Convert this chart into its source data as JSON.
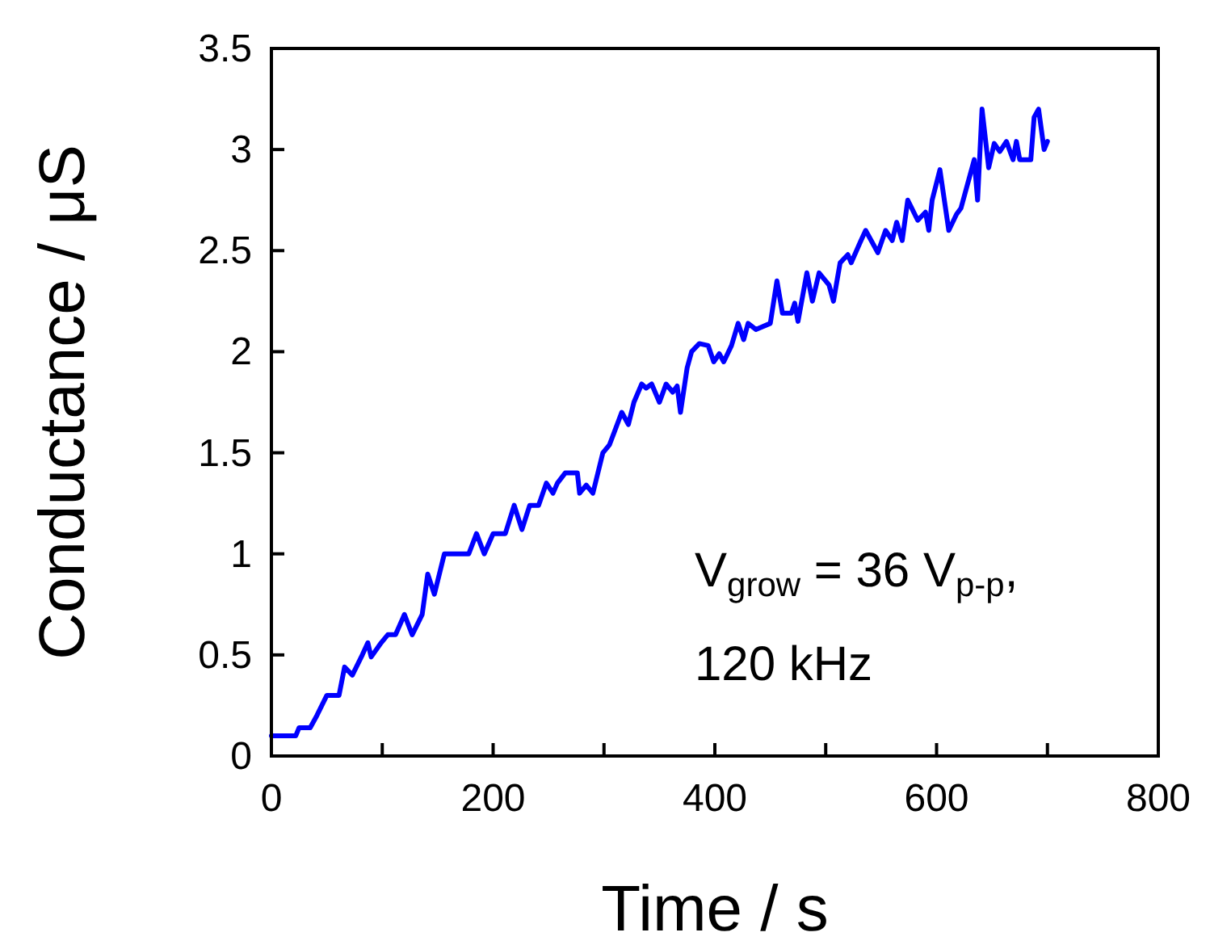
{
  "chart_data": {
    "type": "line",
    "xlabel": "Time / s",
    "ylabel": "Conductance / μS",
    "annotations": [
      "V$_{grow}$ = 36 V$_{p-p}$,",
      "120 kHz"
    ],
    "xlim": [
      0,
      800
    ],
    "xticks": [
      0,
      {
        "value": 100,
        "label": null
      },
      200,
      {
        "value": 300,
        "label": null
      },
      400,
      {
        "value": 500,
        "label": null
      },
      600,
      {
        "value": 700,
        "label": null
      },
      800
    ],
    "ylim": [
      0,
      3.5
    ],
    "yticks": [
      0,
      0.5,
      1,
      1.5,
      2,
      2.5,
      3,
      3.5
    ],
    "grid": false,
    "marker": "none",
    "line_style": "solid",
    "x": [
      0,
      22,
      25,
      35,
      41,
      50,
      61,
      66,
      73,
      82,
      87,
      90,
      99,
      105,
      112,
      120,
      127,
      136,
      141,
      147,
      156,
      178,
      185,
      192,
      200,
      211,
      219,
      226,
      233,
      241,
      248,
      254,
      258,
      265,
      276,
      278,
      284,
      290,
      299,
      305,
      316,
      322,
      327,
      334,
      338,
      343,
      350,
      356,
      362,
      366,
      369,
      375,
      379,
      386,
      394,
      399,
      404,
      408,
      415,
      421,
      426,
      430,
      437,
      450,
      456,
      461,
      469,
      472,
      475,
      483,
      488,
      494,
      503,
      507,
      513,
      520,
      523,
      531,
      536,
      547,
      554,
      560,
      564,
      569,
      574,
      583,
      590,
      593,
      596,
      603,
      611,
      618,
      622,
      634,
      637,
      641,
      647,
      652,
      657,
      663,
      669,
      672,
      675,
      685,
      688,
      692,
      697,
      700
    ],
    "series": [
      {
        "color": "#0000ff",
        "values": [
          0.1,
          0.1,
          0.14,
          0.14,
          0.2,
          0.3,
          0.3,
          0.44,
          0.4,
          0.5,
          0.56,
          0.49,
          0.56,
          0.6,
          0.6,
          0.7,
          0.6,
          0.7,
          0.9,
          0.8,
          1.0,
          1.0,
          1.1,
          1.0,
          1.1,
          1.1,
          1.24,
          1.12,
          1.24,
          1.24,
          1.35,
          1.3,
          1.35,
          1.4,
          1.4,
          1.3,
          1.34,
          1.3,
          1.5,
          1.54,
          1.7,
          1.64,
          1.75,
          1.84,
          1.82,
          1.84,
          1.75,
          1.84,
          1.8,
          1.83,
          1.7,
          1.92,
          2.0,
          2.04,
          2.03,
          1.95,
          1.99,
          1.95,
          2.03,
          2.14,
          2.06,
          2.14,
          2.11,
          2.14,
          2.35,
          2.19,
          2.19,
          2.24,
          2.15,
          2.39,
          2.25,
          2.39,
          2.33,
          2.25,
          2.44,
          2.48,
          2.44,
          2.54,
          2.6,
          2.49,
          2.6,
          2.55,
          2.64,
          2.55,
          2.75,
          2.65,
          2.69,
          2.6,
          2.75,
          2.9,
          2.6,
          2.68,
          2.71,
          2.95,
          2.75,
          3.2,
          2.91,
          3.03,
          2.99,
          3.04,
          2.95,
          3.04,
          2.95,
          2.95,
          3.16,
          3.2,
          3.0,
          3.04
        ]
      }
    ]
  }
}
